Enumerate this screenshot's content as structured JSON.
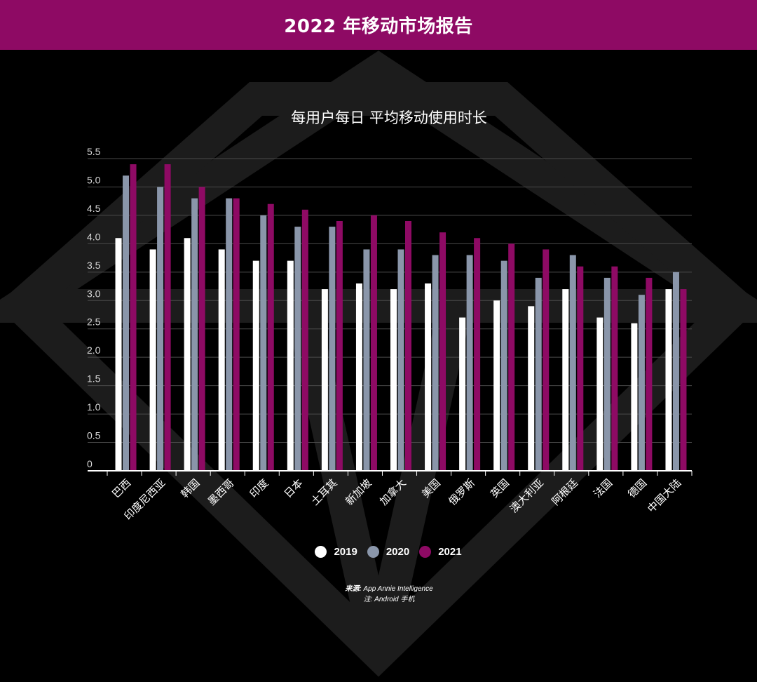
{
  "header": {
    "title": "2022 年移动市场报告"
  },
  "colors": {
    "header_bg": "#8e0a64",
    "background": "#000000",
    "decoration": "#1e1e1e"
  },
  "chart_data": {
    "type": "bar",
    "title": "每用户每日 平均移动使用时长",
    "xlabel": "",
    "ylabel": "",
    "ylim": [
      0,
      5.5
    ],
    "yticks": [
      "0",
      "0.5",
      "1.0",
      "1.5",
      "2.0",
      "2.5",
      "3.0",
      "3.5",
      "4.0",
      "4.5",
      "5.0",
      "5.5"
    ],
    "grid": true,
    "legend": "bottom-center",
    "categories": [
      "巴西",
      "印度尼西亚",
      "韩国",
      "墨西哥",
      "印度",
      "日本",
      "土耳其",
      "新加坡",
      "加拿大",
      "美国",
      "俄罗斯",
      "英国",
      "澳大利亚",
      "阿根廷",
      "法国",
      "德国",
      "中国大陆"
    ],
    "series": [
      {
        "name": "2019",
        "color": "#ffffff",
        "values": [
          4.1,
          3.9,
          4.1,
          3.9,
          3.7,
          3.7,
          3.2,
          3.3,
          3.2,
          3.3,
          2.7,
          3.0,
          2.9,
          3.2,
          2.7,
          2.6,
          3.2
        ]
      },
      {
        "name": "2020",
        "color": "#8a96aa",
        "values": [
          5.2,
          5.0,
          4.8,
          4.8,
          4.5,
          4.3,
          4.3,
          3.9,
          3.9,
          3.8,
          3.8,
          3.7,
          3.4,
          3.8,
          3.4,
          3.1,
          3.5
        ]
      },
      {
        "name": "2021",
        "color": "#8e0a64",
        "values": [
          5.4,
          5.4,
          5.0,
          4.8,
          4.7,
          4.6,
          4.4,
          4.5,
          4.4,
          4.2,
          4.1,
          4.0,
          3.9,
          3.6,
          3.6,
          3.4,
          3.2
        ]
      }
    ]
  },
  "source": {
    "label": "来源:",
    "text": "App Annie Intelligence",
    "note": "注: Android 手机"
  }
}
